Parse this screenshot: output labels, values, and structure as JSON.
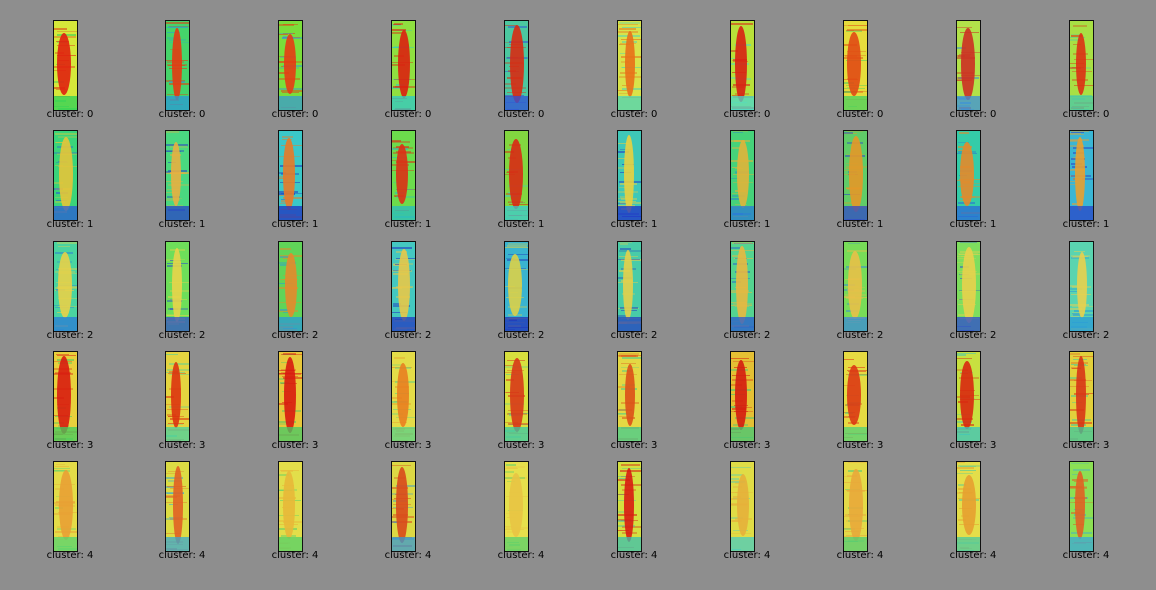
{
  "caption_prefix": "cluster:",
  "rows": [
    {
      "cluster": 0,
      "panels": [
        {
          "caption": "cluster: 0",
          "base": "#d6e83a",
          "band": "#e02010",
          "edge": "#2ad25a"
        },
        {
          "caption": "cluster: 0",
          "base": "#45d46a",
          "band": "#e43a12",
          "edge": "#2a9ad8"
        },
        {
          "caption": "cluster: 0",
          "base": "#7ade3a",
          "band": "#e63c14",
          "edge": "#3a9ad0"
        },
        {
          "caption": "cluster: 0",
          "base": "#8fe040",
          "band": "#dc2010",
          "edge": "#2fc8c8"
        },
        {
          "caption": "cluster: 0",
          "base": "#4bc8a0",
          "band": "#d82a12",
          "edge": "#3050d8"
        },
        {
          "caption": "cluster: 0",
          "base": "#d9e24a",
          "band": "#e87018",
          "edge": "#4ad4b8"
        },
        {
          "caption": "cluster: 0",
          "base": "#b8e03a",
          "band": "#d82014",
          "edge": "#48d8d0"
        },
        {
          "caption": "cluster: 0",
          "base": "#e6dc3c",
          "band": "#e04a14",
          "edge": "#45d060"
        },
        {
          "caption": "cluster: 0",
          "base": "#b2e24a",
          "band": "#cc3024",
          "edge": "#3a8fdc"
        },
        {
          "caption": "cluster: 0",
          "base": "#a8e044",
          "band": "#dc3014",
          "edge": "#48c8a8"
        }
      ]
    },
    {
      "cluster": 1,
      "panels": [
        {
          "caption": "cluster: 1",
          "base": "#3ad47a",
          "band": "#e6c43a",
          "edge": "#2a5ad8"
        },
        {
          "caption": "cluster: 1",
          "base": "#4ad880",
          "band": "#e8b040",
          "edge": "#2840c8"
        },
        {
          "caption": "cluster: 1",
          "base": "#3ac8c8",
          "band": "#e87a28",
          "edge": "#2030c0"
        },
        {
          "caption": "cluster: 1",
          "base": "#6cdc4c",
          "band": "#dc3016",
          "edge": "#2abcc0"
        },
        {
          "caption": "cluster: 1",
          "base": "#82d640",
          "band": "#d82a14",
          "edge": "#3acbd0"
        },
        {
          "caption": "cluster: 1",
          "base": "#3ec8b8",
          "band": "#e8d040",
          "edge": "#2030c8"
        },
        {
          "caption": "cluster: 1",
          "base": "#46d27a",
          "band": "#e0b43a",
          "edge": "#2a7ad8"
        },
        {
          "caption": "cluster: 1",
          "base": "#60cc68",
          "band": "#e49828",
          "edge": "#3048c8"
        },
        {
          "caption": "cluster: 1",
          "base": "#34cca8",
          "band": "#e48a2a",
          "edge": "#2a6ad8"
        },
        {
          "caption": "cluster: 1",
          "base": "#3ab6d4",
          "band": "#e8a030",
          "edge": "#2a44c8"
        }
      ]
    },
    {
      "cluster": 2,
      "panels": [
        {
          "caption": "cluster: 2",
          "base": "#4ad4a0",
          "band": "#e8d048",
          "edge": "#2a7ad8"
        },
        {
          "caption": "cluster: 2",
          "base": "#6ede5a",
          "band": "#e8d44a",
          "edge": "#3050c8"
        },
        {
          "caption": "cluster: 2",
          "base": "#60d458",
          "band": "#e48a2c",
          "edge": "#2a9ad8"
        },
        {
          "caption": "cluster: 2",
          "base": "#44c8c0",
          "band": "#e8c848",
          "edge": "#2238c0"
        },
        {
          "caption": "cluster: 2",
          "base": "#3ab4d0",
          "band": "#dcd048",
          "edge": "#2030b8"
        },
        {
          "caption": "cluster: 2",
          "base": "#48cca8",
          "band": "#e4d04a",
          "edge": "#2440c0"
        },
        {
          "caption": "cluster: 2",
          "base": "#54d490",
          "band": "#e8b840",
          "edge": "#2a5ad0"
        },
        {
          "caption": "cluster: 2",
          "base": "#78dc58",
          "band": "#e8c048",
          "edge": "#3a8ad8"
        },
        {
          "caption": "cluster: 2",
          "base": "#7ede5e",
          "band": "#e8d24c",
          "edge": "#2c4ad0"
        },
        {
          "caption": "cluster: 2",
          "base": "#5ad4b0",
          "band": "#e8d04e",
          "edge": "#2a9ad8"
        }
      ]
    },
    {
      "cluster": 3,
      "panels": [
        {
          "caption": "cluster: 3",
          "base": "#e8d03c",
          "band": "#d81c10",
          "edge": "#40cc60"
        },
        {
          "caption": "cluster: 3",
          "base": "#e4d440",
          "band": "#dc3410",
          "edge": "#48d0a0"
        },
        {
          "caption": "cluster: 3",
          "base": "#e8c83a",
          "band": "#d81a10",
          "edge": "#44c868"
        },
        {
          "caption": "cluster: 3",
          "base": "#e4dc48",
          "band": "#e88020",
          "edge": "#58d288"
        },
        {
          "caption": "cluster: 3",
          "base": "#d8e03e",
          "band": "#d83818",
          "edge": "#3ac8a8"
        },
        {
          "caption": "cluster: 3",
          "base": "#e4d844",
          "band": "#dc5018",
          "edge": "#42cc90"
        },
        {
          "caption": "cluster: 3",
          "base": "#e4c034",
          "band": "#d41c10",
          "edge": "#40c878"
        },
        {
          "caption": "cluster: 3",
          "base": "#e6da42",
          "band": "#dc3814",
          "edge": "#50d078"
        },
        {
          "caption": "cluster: 3",
          "base": "#c8e040",
          "band": "#d82810",
          "edge": "#38c4c0"
        },
        {
          "caption": "cluster: 3",
          "base": "#e2d03c",
          "band": "#d83416",
          "edge": "#3ac8a0"
        }
      ]
    },
    {
      "cluster": 4,
      "panels": [
        {
          "caption": "cluster: 4",
          "base": "#e4dc48",
          "band": "#e8a034",
          "edge": "#54d470"
        },
        {
          "caption": "cluster: 4",
          "base": "#dcdc44",
          "band": "#e06024",
          "edge": "#3aa8d0"
        },
        {
          "caption": "cluster: 4",
          "base": "#e2de4a",
          "band": "#e8b838",
          "edge": "#52d06a"
        },
        {
          "caption": "cluster: 4",
          "base": "#dcd844",
          "band": "#d84a1c",
          "edge": "#3a9ad0"
        },
        {
          "caption": "cluster: 4",
          "base": "#e6e04c",
          "band": "#e8c444",
          "edge": "#58d06c"
        },
        {
          "caption": "cluster: 4",
          "base": "#d4e040",
          "band": "#d81c12",
          "edge": "#3ac0b0"
        },
        {
          "caption": "cluster: 4",
          "base": "#e0dc46",
          "band": "#e6b03a",
          "edge": "#48ccc0"
        },
        {
          "caption": "cluster: 4",
          "base": "#e4da48",
          "band": "#e8a83a",
          "edge": "#52cc74"
        },
        {
          "caption": "cluster: 4",
          "base": "#e4de4a",
          "band": "#e6a030",
          "edge": "#48c8a0"
        },
        {
          "caption": "cluster: 4",
          "base": "#8ce054",
          "band": "#e06024",
          "edge": "#3aa8d8"
        }
      ]
    }
  ]
}
